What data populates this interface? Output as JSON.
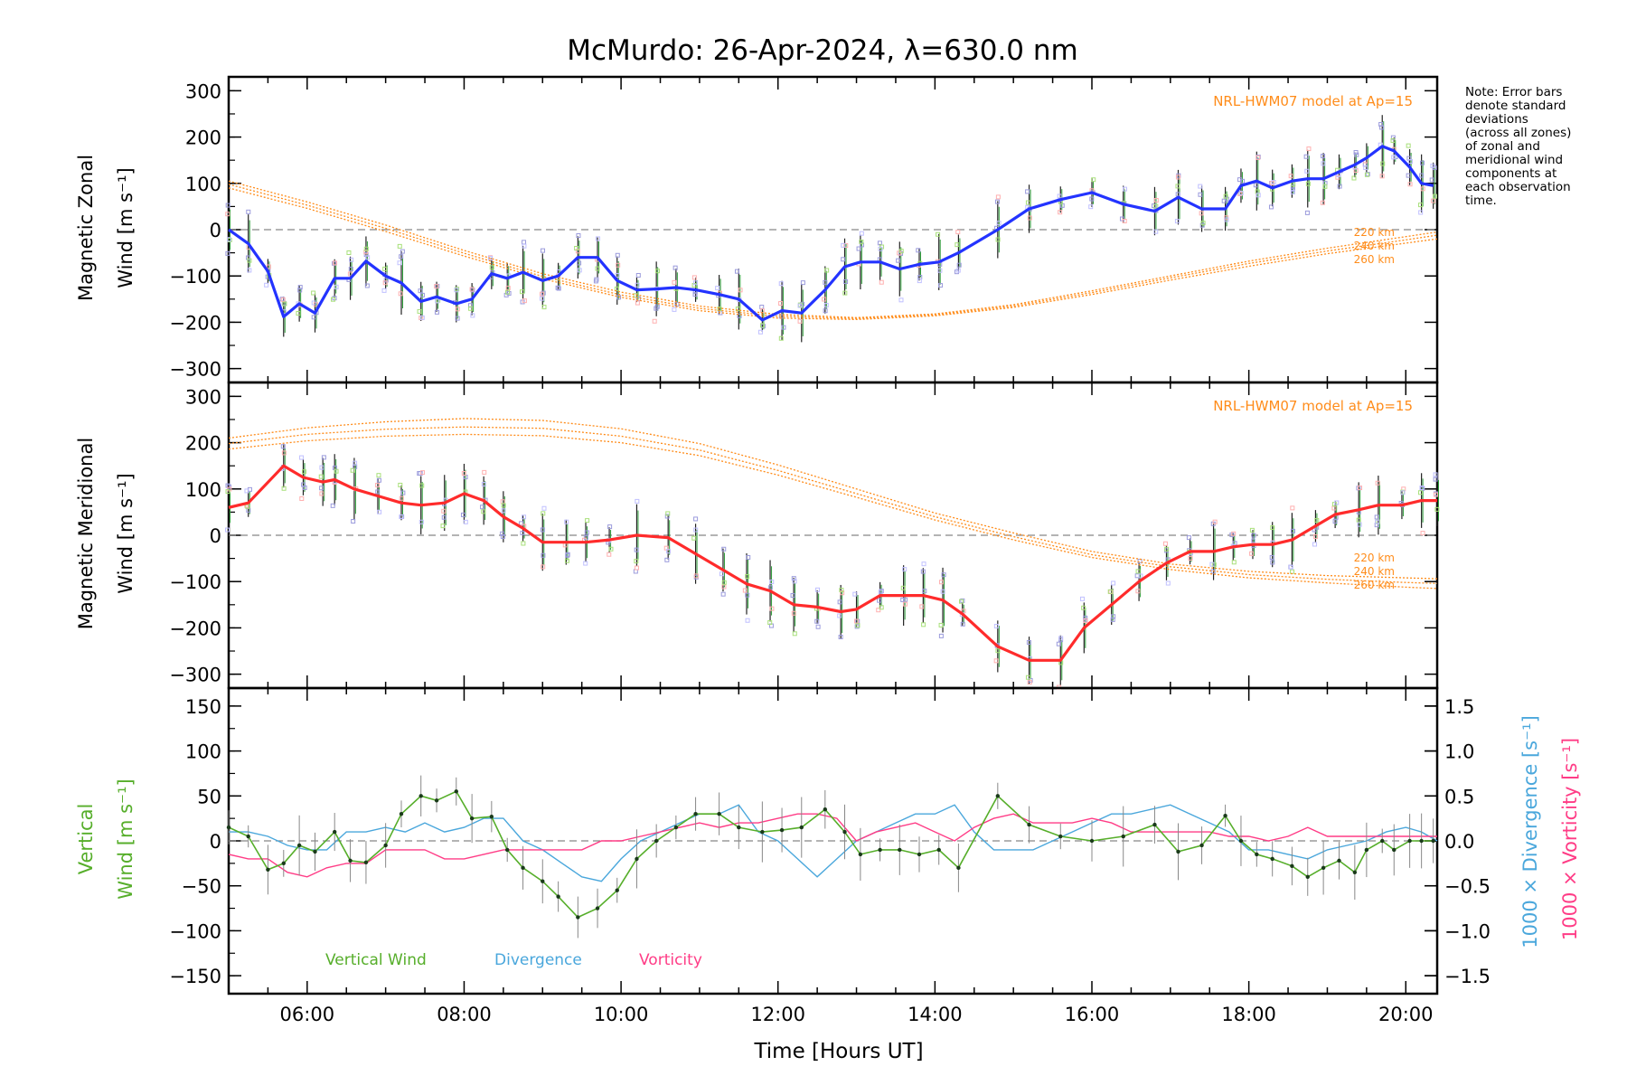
{
  "title": "McMurdo: 26-Apr-2024, λ=630.0 nm",
  "note": "Note: Error bars\ndenote standard\ndeviations\n(across all zones)\nof zonal and\nmeridional wind\ncomponents at\neach observation\ntime.",
  "xlabel": "Time [Hours UT]",
  "xticks": [
    "06:00",
    "08:00",
    "10:00",
    "12:00",
    "14:00",
    "16:00",
    "18:00",
    "20:00"
  ],
  "colors": {
    "zonal": "#2333ff",
    "meridional": "#ff2b2b",
    "vertical": "#56ae2a",
    "divergence": "#4aa7dc",
    "vorticity": "#ff3c86",
    "model": "#ff8c1a",
    "scatter": "#9b9bdc"
  },
  "zonal": {
    "ylabel_line1": "Magnetic Zonal",
    "ylabel_line2": "Wind [m s⁻¹]",
    "model_label": "NRL-HWM07 model at Ap=15",
    "model_heights": [
      "220 km",
      "240 km",
      "260 km"
    ]
  },
  "meridional": {
    "ylabel_line1": "Magnetic Meridional",
    "ylabel_line2": "Wind [m s⁻¹]",
    "model_label": "NRL-HWM07 model at Ap=15",
    "model_heights": [
      "220 km",
      "240 km",
      "260 km"
    ]
  },
  "vertical": {
    "ylabel_line1": "Vertical",
    "ylabel_line2": "Wind [m s⁻¹]",
    "right_label_divergence": "1000 × Divergence [s⁻¹]",
    "right_label_vorticity": "1000 × Vorticity [s⁻¹]",
    "legend": [
      "Vertical Wind",
      "Divergence",
      "Vorticity"
    ]
  },
  "chart_data": [
    {
      "type": "line",
      "panel": "zonal",
      "title": "McMurdo: 26-Apr-2024, λ=630.0 nm",
      "xlabel": "",
      "ylabel": "Magnetic Zonal Wind [m s⁻¹]",
      "xlim": [
        5.0,
        20.4
      ],
      "ylim": [
        -330,
        330
      ],
      "yticks": [
        -300,
        -200,
        -100,
        0,
        100,
        200,
        300
      ],
      "grid": false,
      "series": [
        {
          "name": "",
          "x": [
            5.0,
            5.25,
            5.5,
            5.7,
            5.9,
            6.1,
            6.35,
            6.55,
            6.75,
            7.0,
            7.2,
            7.45,
            7.65,
            7.9,
            8.1,
            8.35,
            8.55,
            8.75,
            9.0,
            9.2,
            9.45,
            9.7,
            9.95,
            10.2,
            10.45,
            10.7,
            10.95,
            11.25,
            11.5,
            11.8,
            12.05,
            12.3,
            12.6,
            12.85,
            13.05,
            13.3,
            13.55,
            13.8,
            14.05,
            14.3,
            14.8,
            15.2,
            15.6,
            16.0,
            16.4,
            16.8,
            17.1,
            17.4,
            17.7,
            17.9,
            18.1,
            18.3,
            18.55,
            18.75,
            18.95,
            19.15,
            19.35,
            19.5,
            19.7,
            19.85,
            20.05,
            20.2,
            20.35
          ],
          "values": [
            0,
            -30,
            -90,
            -188,
            -160,
            -180,
            -105,
            -105,
            -68,
            -100,
            -115,
            -155,
            -145,
            -160,
            -150,
            -95,
            -105,
            -92,
            -110,
            -100,
            -60,
            -60,
            -110,
            -130,
            -128,
            -125,
            -130,
            -140,
            -150,
            -195,
            -175,
            -180,
            -130,
            -80,
            -70,
            -70,
            -85,
            -75,
            -70,
            -50,
            0,
            45,
            65,
            80,
            55,
            40,
            70,
            45,
            45,
            95,
            105,
            90,
            105,
            110,
            110,
            125,
            140,
            155,
            180,
            170,
            135,
            100,
            95
          ]
        },
        {
          "name": "220 km",
          "x": [
            5.0,
            6.0,
            7.0,
            8.0,
            9.0,
            10.0,
            11.0,
            12.0,
            13.0,
            14.0,
            15.0,
            16.0,
            17.0,
            18.0,
            19.0,
            20.0,
            20.4
          ],
          "values": [
            105,
            60,
            10,
            -45,
            -95,
            -135,
            -165,
            -183,
            -190,
            -182,
            -162,
            -132,
            -100,
            -68,
            -40,
            -15,
            -5
          ]
        },
        {
          "name": "240 km",
          "x": [
            5.0,
            6.0,
            7.0,
            8.0,
            9.0,
            10.0,
            11.0,
            12.0,
            13.0,
            14.0,
            15.0,
            16.0,
            17.0,
            18.0,
            19.0,
            20.0,
            20.4
          ],
          "values": [
            98,
            53,
            3,
            -51,
            -101,
            -141,
            -170,
            -187,
            -192,
            -184,
            -165,
            -136,
            -104,
            -73,
            -46,
            -22,
            -12
          ]
        },
        {
          "name": "260 km",
          "x": [
            5.0,
            6.0,
            7.0,
            8.0,
            9.0,
            10.0,
            11.0,
            12.0,
            13.0,
            14.0,
            15.0,
            16.0,
            17.0,
            18.0,
            19.0,
            20.0,
            20.4
          ],
          "values": [
            90,
            46,
            -4,
            -57,
            -106,
            -146,
            -175,
            -191,
            -194,
            -186,
            -168,
            -140,
            -109,
            -79,
            -52,
            -29,
            -20
          ]
        }
      ]
    },
    {
      "type": "line",
      "panel": "meridional",
      "title": "",
      "xlabel": "",
      "ylabel": "Magnetic Meridional Wind [m s⁻¹]",
      "xlim": [
        5.0,
        20.4
      ],
      "ylim": [
        -330,
        330
      ],
      "yticks": [
        -300,
        -200,
        -100,
        0,
        100,
        200,
        300
      ],
      "grid": false,
      "series": [
        {
          "name": "",
          "x": [
            5.0,
            5.25,
            5.7,
            5.95,
            6.2,
            6.35,
            6.6,
            6.9,
            7.2,
            7.45,
            7.75,
            8.0,
            8.25,
            8.5,
            8.75,
            9.0,
            9.3,
            9.55,
            9.85,
            10.2,
            10.6,
            10.95,
            11.3,
            11.6,
            11.9,
            12.2,
            12.5,
            12.8,
            13.0,
            13.3,
            13.6,
            13.85,
            14.1,
            14.35,
            14.8,
            15.2,
            15.6,
            15.9,
            16.25,
            16.6,
            16.95,
            17.25,
            17.55,
            17.8,
            18.05,
            18.3,
            18.55,
            18.85,
            19.1,
            19.4,
            19.65,
            19.95,
            20.2,
            20.4
          ],
          "values": [
            60,
            70,
            150,
            125,
            115,
            120,
            100,
            85,
            70,
            65,
            70,
            90,
            75,
            40,
            15,
            -15,
            -15,
            -15,
            -10,
            0,
            -5,
            -40,
            -75,
            -105,
            -120,
            -150,
            -155,
            -165,
            -160,
            -130,
            -130,
            -130,
            -140,
            -170,
            -240,
            -270,
            -270,
            -200,
            -150,
            -100,
            -60,
            -35,
            -35,
            -25,
            -20,
            -20,
            -10,
            20,
            45,
            55,
            65,
            65,
            75,
            75
          ]
        },
        {
          "name": "220 km",
          "x": [
            5.0,
            6.0,
            7.0,
            8.0,
            9.0,
            10.0,
            11.0,
            12.0,
            13.0,
            14.0,
            15.0,
            16.0,
            17.0,
            18.0,
            19.0,
            20.0,
            20.4
          ],
          "values": [
            210,
            232,
            245,
            252,
            248,
            230,
            198,
            152,
            100,
            48,
            5,
            -35,
            -62,
            -78,
            -87,
            -92,
            -94
          ]
        },
        {
          "name": "240 km",
          "x": [
            5.0,
            6.0,
            7.0,
            8.0,
            9.0,
            10.0,
            11.0,
            12.0,
            13.0,
            14.0,
            15.0,
            16.0,
            17.0,
            18.0,
            19.0,
            20.0,
            20.4
          ],
          "values": [
            198,
            218,
            229,
            234,
            231,
            214,
            184,
            140,
            90,
            40,
            -3,
            -42,
            -68,
            -85,
            -95,
            -102,
            -104
          ]
        },
        {
          "name": "260 km",
          "x": [
            5.0,
            6.0,
            7.0,
            8.0,
            9.0,
            10.0,
            11.0,
            12.0,
            13.0,
            14.0,
            15.0,
            16.0,
            17.0,
            18.0,
            19.0,
            20.0,
            20.4
          ],
          "values": [
            186,
            204,
            214,
            218,
            215,
            200,
            172,
            130,
            82,
            33,
            -10,
            -48,
            -74,
            -92,
            -103,
            -112,
            -115
          ]
        }
      ]
    },
    {
      "type": "line",
      "panel": "vertical",
      "title": "",
      "xlabel": "Time [Hours UT]",
      "ylabel": "Vertical Wind [m s⁻¹]",
      "xlim": [
        5.0,
        20.4
      ],
      "ylim": [
        -170,
        170
      ],
      "yticks": [
        -150,
        -100,
        -50,
        0,
        50,
        100,
        150
      ],
      "y2label": "1000 × Divergence [s⁻¹] / 1000 × Vorticity [s⁻¹]",
      "y2lim": [
        -1.7,
        1.7
      ],
      "y2ticks": [
        -1.5,
        -1.0,
        -0.5,
        0.0,
        0.5,
        1.0,
        1.5
      ],
      "grid": false,
      "series": [
        {
          "name": "Vertical Wind",
          "x": [
            5.0,
            5.25,
            5.5,
            5.7,
            5.9,
            6.1,
            6.35,
            6.55,
            6.75,
            7.0,
            7.2,
            7.45,
            7.65,
            7.9,
            8.1,
            8.35,
            8.55,
            8.75,
            9.0,
            9.2,
            9.45,
            9.7,
            9.95,
            10.2,
            10.45,
            10.7,
            10.95,
            11.25,
            11.5,
            11.8,
            12.05,
            12.3,
            12.6,
            12.85,
            13.05,
            13.3,
            13.55,
            13.8,
            14.05,
            14.3,
            14.8,
            15.2,
            15.6,
            16.0,
            16.4,
            16.8,
            17.1,
            17.4,
            17.7,
            17.9,
            18.1,
            18.3,
            18.55,
            18.75,
            18.95,
            19.15,
            19.35,
            19.5,
            19.7,
            19.85,
            20.05,
            20.2,
            20.35
          ],
          "values": [
            15,
            5,
            -32,
            -25,
            -5,
            -12,
            10,
            -22,
            -24,
            -5,
            30,
            50,
            45,
            55,
            25,
            27,
            -10,
            -30,
            -45,
            -62,
            -85,
            -75,
            -55,
            -20,
            0,
            15,
            30,
            30,
            15,
            10,
            12,
            15,
            35,
            10,
            -15,
            -10,
            -10,
            -15,
            -10,
            -30,
            50,
            18,
            5,
            0,
            5,
            18,
            -12,
            -5,
            28,
            0,
            -15,
            -20,
            -28,
            -40,
            -30,
            -22,
            -35,
            -10,
            0,
            -10,
            0,
            0,
            0
          ]
        },
        {
          "name": "Divergence",
          "x": [
            5.0,
            5.25,
            5.5,
            5.75,
            6.0,
            6.25,
            6.5,
            6.75,
            7.0,
            7.25,
            7.5,
            7.75,
            8.0,
            8.25,
            8.5,
            8.75,
            9.0,
            9.25,
            9.5,
            9.75,
            10.0,
            10.25,
            10.5,
            10.75,
            11.0,
            11.25,
            11.5,
            11.75,
            12.0,
            12.25,
            12.5,
            12.75,
            13.0,
            13.25,
            13.5,
            13.75,
            14.0,
            14.25,
            14.5,
            14.75,
            15.0,
            15.25,
            15.5,
            15.75,
            16.0,
            16.25,
            16.5,
            16.75,
            17.0,
            17.25,
            17.5,
            17.75,
            18.0,
            18.25,
            18.5,
            18.75,
            19.0,
            19.25,
            19.5,
            19.75,
            20.0,
            20.2,
            20.4
          ],
          "values": [
            0.1,
            0.1,
            0.05,
            -0.05,
            -0.1,
            -0.1,
            0.1,
            0.1,
            0.15,
            0.1,
            0.2,
            0.1,
            0.15,
            0.25,
            0.25,
            0.0,
            -0.1,
            -0.25,
            -0.4,
            -0.45,
            -0.2,
            0.0,
            0.1,
            0.2,
            0.3,
            0.3,
            0.4,
            0.1,
            0.0,
            -0.2,
            -0.4,
            -0.2,
            0.0,
            0.1,
            0.2,
            0.3,
            0.3,
            0.4,
            0.1,
            -0.1,
            -0.1,
            -0.1,
            0.0,
            0.1,
            0.2,
            0.3,
            0.3,
            0.35,
            0.4,
            0.3,
            0.2,
            0.1,
            -0.1,
            -0.1,
            -0.15,
            -0.2,
            -0.1,
            -0.05,
            0.0,
            0.1,
            0.15,
            0.1,
            0.0
          ]
        },
        {
          "name": "Vorticity",
          "x": [
            5.0,
            5.25,
            5.5,
            5.75,
            6.0,
            6.25,
            6.5,
            6.75,
            7.0,
            7.25,
            7.5,
            7.75,
            8.0,
            8.25,
            8.5,
            8.75,
            9.0,
            9.25,
            9.5,
            9.75,
            10.0,
            10.25,
            10.5,
            10.75,
            11.0,
            11.25,
            11.5,
            11.75,
            12.0,
            12.25,
            12.5,
            12.75,
            13.0,
            13.25,
            13.5,
            13.75,
            14.0,
            14.25,
            14.5,
            14.75,
            15.0,
            15.25,
            15.5,
            15.75,
            16.0,
            16.25,
            16.5,
            16.75,
            17.0,
            17.25,
            17.5,
            17.75,
            18.0,
            18.25,
            18.5,
            18.75,
            19.0,
            19.25,
            19.5,
            19.75,
            20.0,
            20.2,
            20.4
          ],
          "values": [
            -0.15,
            -0.2,
            -0.2,
            -0.35,
            -0.4,
            -0.3,
            -0.25,
            -0.25,
            -0.1,
            -0.1,
            -0.1,
            -0.2,
            -0.2,
            -0.15,
            -0.1,
            -0.1,
            -0.1,
            -0.1,
            -0.1,
            0.0,
            0.0,
            0.05,
            0.1,
            0.15,
            0.2,
            0.15,
            0.2,
            0.2,
            0.25,
            0.3,
            0.3,
            0.25,
            0.0,
            0.1,
            0.15,
            0.2,
            0.1,
            0.0,
            0.15,
            0.25,
            0.3,
            0.2,
            0.2,
            0.2,
            0.25,
            0.2,
            0.1,
            0.1,
            0.1,
            0.1,
            0.1,
            0.05,
            0.05,
            0.0,
            0.05,
            0.15,
            0.05,
            0.05,
            0.05,
            0.05,
            0.05,
            0.05,
            0.05
          ]
        }
      ]
    }
  ]
}
